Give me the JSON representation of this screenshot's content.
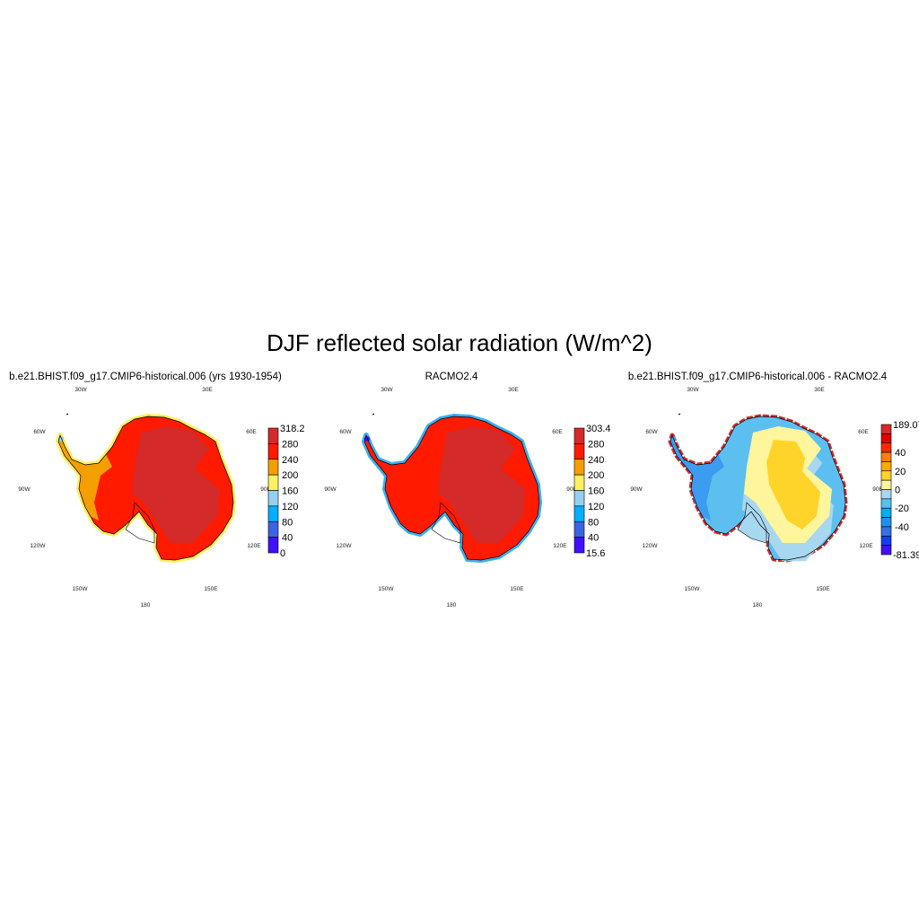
{
  "title": "DJF reflected solar radiation (W/m^2)",
  "lon_labels": [
    "30W",
    "30E",
    "60W",
    "60E",
    "90W",
    "90E",
    "120W",
    "120E",
    "150W",
    "150E",
    "180"
  ],
  "panels": [
    {
      "subtitle": "b.e21.BHIST.f09_g17.CMIP6-historical.006 (yrs 1930-1954)",
      "fill": {
        "coast_band": "#fff060",
        "base": "#ff1a00",
        "west": "#f59e00",
        "plateau": "#d42a2a",
        "peninsula_tip": "#96d0f0"
      },
      "colorbar": {
        "colors": [
          "#d42a2a",
          "#ff1a00",
          "#f59e00",
          "#fff060",
          "#96d0f0",
          "#00b0ff",
          "#3c64e0",
          "#4010ff"
        ],
        "labels": [
          "318.2",
          "280",
          "240",
          "200",
          "160",
          "120",
          "80",
          "40",
          "0"
        ]
      }
    },
    {
      "subtitle": "RACMO2.4",
      "fill": {
        "coast_band": "#3ab0f0",
        "base": "#ff1a00",
        "west": "#ff1a00",
        "plateau": "#d42a2a",
        "peninsula_tip": "#4010ff"
      },
      "colorbar": {
        "colors": [
          "#d42a2a",
          "#ff1a00",
          "#f59e00",
          "#fff060",
          "#96d0f0",
          "#00b0ff",
          "#3c64e0",
          "#4010ff"
        ],
        "labels": [
          "303.4",
          "280",
          "240",
          "200",
          "160",
          "120",
          "80",
          "40",
          "15.6"
        ]
      }
    },
    {
      "subtitle": "b.e21.BHIST.f09_g17.CMIP6-historical.006 - RACMO2.4",
      "fill": {
        "coast_band": "#d42a2a",
        "base": "#5cbff0",
        "west": "#3c9cf0",
        "plateau": "#fff59d",
        "core": "#ffd42a",
        "ring": "#a8d8f0"
      },
      "colorbar": {
        "colors": [
          "#d42a2a",
          "#e00000",
          "#ff2a00",
          "#ff7f00",
          "#ffaa00",
          "#ffd42a",
          "#fff59d",
          "#a8d8f0",
          "#5cbff0",
          "#00b0f0",
          "#2090f0",
          "#3870e0",
          "#1040f0",
          "#4010f0"
        ],
        "labels": [
          "189.07",
          "",
          "",
          "40",
          "",
          "20",
          "",
          "0",
          "",
          "-20",
          "",
          "-40",
          "",
          "",
          "-81.39"
        ]
      }
    }
  ]
}
